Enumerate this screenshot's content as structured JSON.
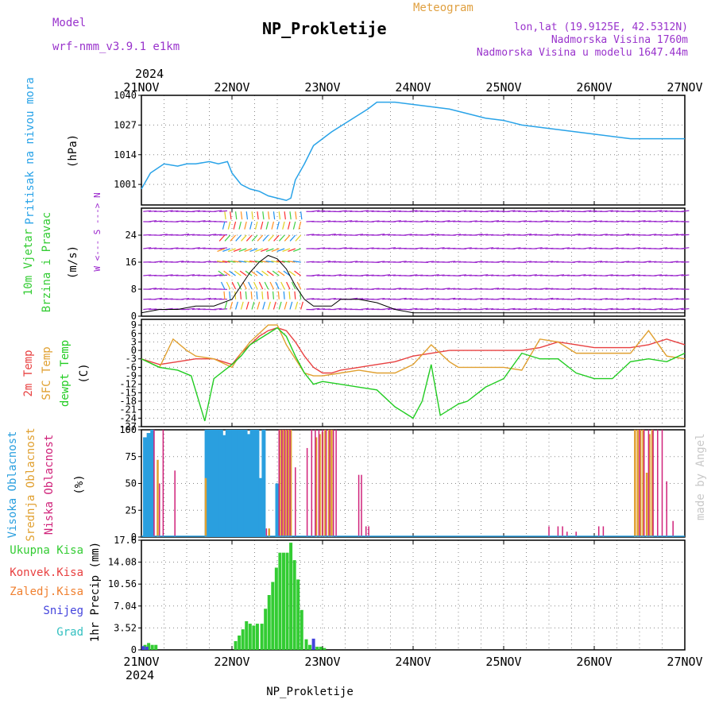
{
  "header": {
    "model_label": "Model",
    "model_name": "wrf-nmm_v3.9.1  e1km",
    "title": "NP_Prokletije",
    "meteogram_label": "Meteogram",
    "lonlat": "lon,lat (19.9125E, 42.5312N)",
    "elevation": "Nadmorska Visina 1760m",
    "model_elevation": "Nadmorska Visina u modelu 1647.44m",
    "top_year": "2024",
    "bottom_year": "2024",
    "footer": "NP_Prokletije",
    "credit": "made by Angel"
  },
  "colors": {
    "pressure": "#29a3e8",
    "wind_speed": "#000000",
    "temp2m": "#e84040",
    "sfc_temp": "#e0a030",
    "dewpoint": "#22cc22",
    "high_cloud": "#2a9fdf",
    "mid_cloud": "#e0a030",
    "low_cloud": "#d0227a",
    "total_precip": "#33cc33",
    "convective": "#e84040",
    "freezing": "#f08030",
    "snow": "#4444dd",
    "hail": "#33c0c0",
    "vane_purple": "#9922cc"
  },
  "chart_data": [
    {
      "type": "line",
      "panel": "pressure",
      "ylabel": [
        "Pritisak na nivou mora",
        "(hPa)"
      ],
      "x_ticks": [
        "21NOV",
        "22NOV",
        "23NOV",
        "24NOV",
        "25NOV",
        "26NOV",
        "27NOV"
      ],
      "ylim": [
        992,
        1040
      ],
      "yticks": [
        1001,
        1014,
        1027,
        1040
      ],
      "grid": true,
      "series": [
        {
          "x": [
            0,
            0.1,
            0.25,
            0.4,
            0.5,
            0.6,
            0.75,
            0.85,
            0.95,
            1.0,
            1.1,
            1.2,
            1.3,
            1.4,
            1.5,
            1.6,
            1.65,
            1.7,
            1.8,
            1.9,
            2.0,
            2.1,
            2.3,
            2.5,
            2.6,
            2.8,
            3.0,
            3.2,
            3.4,
            3.6,
            3.8,
            4.0,
            4.2,
            4.4,
            4.6,
            4.8,
            5.0,
            5.2,
            5.4,
            5.6,
            5.8,
            6.0
          ],
          "y": [
            999,
            1006,
            1010,
            1009,
            1010,
            1010,
            1011,
            1010,
            1011,
            1006,
            1001,
            999,
            998,
            996,
            995,
            994,
            995,
            1003,
            1010,
            1018,
            1021,
            1024,
            1029,
            1034,
            1037,
            1037,
            1036,
            1035,
            1034,
            1032,
            1030,
            1029,
            1027,
            1026,
            1025,
            1024,
            1023,
            1022,
            1021,
            1021,
            1021,
            1021
          ]
        }
      ]
    },
    {
      "type": "line",
      "panel": "wind",
      "ylabel": [
        "10m Vjetar",
        "Brzina i Pravac",
        "(m/s)"
      ],
      "direction_legend": "W <--- S ---> N",
      "ylim": [
        0,
        32
      ],
      "yticks": [
        0,
        8,
        16,
        24
      ],
      "grid": true,
      "series": [
        {
          "name": "wind_speed",
          "x": [
            0,
            0.2,
            0.4,
            0.6,
            0.8,
            1.0,
            1.1,
            1.2,
            1.3,
            1.4,
            1.5,
            1.6,
            1.7,
            1.8,
            1.9,
            2.0,
            2.1,
            2.2,
            2.4,
            2.6,
            2.8,
            3.0,
            3.2,
            3.5,
            4.0,
            4.5,
            5.0,
            5.5,
            6.0
          ],
          "y": [
            1,
            2,
            2,
            3,
            3,
            5,
            9,
            13,
            16,
            18,
            17,
            14,
            9,
            5,
            3,
            3,
            3,
            5,
            5,
            4,
            2,
            1,
            1,
            1,
            1,
            1,
            1,
            1,
            1
          ]
        }
      ]
    },
    {
      "type": "line",
      "panel": "temperature",
      "ylabel": [
        "2m Temp",
        "SFC Temp",
        "dewpt Temp",
        "(C)"
      ],
      "ylim": [
        -27,
        11
      ],
      "yticks": [
        -27,
        -24,
        -21,
        -18,
        -15,
        -12,
        -9,
        -6,
        -3,
        0,
        3,
        6,
        9
      ],
      "grid": true,
      "series": [
        {
          "name": "2m Temp",
          "x": [
            0,
            0.2,
            0.4,
            0.6,
            0.8,
            1.0,
            1.1,
            1.2,
            1.3,
            1.4,
            1.5,
            1.6,
            1.7,
            1.8,
            1.9,
            2.0,
            2.1,
            2.2,
            2.4,
            2.6,
            2.8,
            3.0,
            3.2,
            3.4,
            3.6,
            3.8,
            4.0,
            4.2,
            4.4,
            4.6,
            4.8,
            5.0,
            5.2,
            5.4,
            5.6,
            5.8,
            6.0
          ],
          "y": [
            -3,
            -5,
            -4,
            -3,
            -3,
            -5,
            -1,
            2,
            5,
            7,
            8,
            7,
            3,
            -2,
            -6,
            -8,
            -8,
            -7,
            -6,
            -5,
            -4,
            -2,
            -1,
            0,
            0,
            0,
            0,
            0,
            1,
            3,
            2,
            1,
            1,
            1,
            2,
            4,
            2
          ]
        },
        {
          "name": "SFC Temp",
          "x": [
            0,
            0.2,
            0.35,
            0.5,
            0.6,
            0.8,
            1.0,
            1.1,
            1.2,
            1.3,
            1.4,
            1.5,
            1.6,
            1.7,
            1.8,
            1.9,
            2.0,
            2.2,
            2.4,
            2.6,
            2.8,
            3.0,
            3.2,
            3.4,
            3.5,
            3.6,
            3.8,
            4.0,
            4.2,
            4.4,
            4.6,
            4.8,
            5.0,
            5.2,
            5.4,
            5.6,
            5.8,
            6.0
          ],
          "y": [
            -3,
            -6,
            4,
            0,
            -2,
            -3,
            -6,
            -1,
            3,
            6,
            9,
            9,
            2,
            -3,
            -8,
            -9,
            -9,
            -8,
            -7,
            -8,
            -8,
            -5,
            2,
            -4,
            -6,
            -6,
            -6,
            -6,
            -7,
            4,
            3,
            -1,
            -1,
            -1,
            -1,
            7,
            -2,
            -3
          ]
        },
        {
          "name": "dewpt Temp",
          "x": [
            0,
            0.2,
            0.4,
            0.55,
            0.7,
            0.8,
            1.0,
            1.1,
            1.2,
            1.3,
            1.4,
            1.5,
            1.6,
            1.7,
            1.8,
            1.9,
            2.0,
            2.2,
            2.4,
            2.6,
            2.8,
            3.0,
            3.1,
            3.2,
            3.3,
            3.5,
            3.6,
            3.8,
            4.0,
            4.2,
            4.4,
            4.6,
            4.8,
            5.0,
            5.2,
            5.4,
            5.6,
            5.8,
            6.0
          ],
          "y": [
            -3,
            -6,
            -7,
            -9,
            -25,
            -10,
            -5,
            -2,
            2,
            4,
            6,
            8,
            5,
            -2,
            -8,
            -12,
            -11,
            -12,
            -13,
            -14,
            -20,
            -24,
            -18,
            -5,
            -23,
            -19,
            -18,
            -13,
            -10,
            -1,
            -3,
            -3,
            -8,
            -10,
            -10,
            -4,
            -3,
            -4,
            -1
          ]
        }
      ]
    },
    {
      "type": "bar",
      "panel": "cloud",
      "ylabel": [
        "Visoka Oblacnost",
        "Srednja Oblacnost",
        "Niska Oblacnost",
        "(%)"
      ],
      "ylim": [
        0,
        100
      ],
      "yticks": [
        0,
        25,
        50,
        75,
        100
      ],
      "grid": true,
      "series": [
        {
          "name": "Visoka Oblacnost",
          "x": [
            0.04,
            0.08,
            0.12,
            0.72,
            0.75,
            0.78,
            0.81,
            0.85,
            0.88,
            0.91,
            0.95,
            0.98,
            1.02,
            1.05,
            1.08,
            1.12,
            1.15,
            1.18,
            1.22,
            1.25,
            1.28,
            1.32,
            1.35,
            1.5
          ],
          "y": [
            93,
            97,
            100,
            100,
            100,
            100,
            100,
            100,
            100,
            95,
            100,
            100,
            100,
            100,
            100,
            100,
            100,
            96,
            100,
            100,
            100,
            55,
            100,
            50
          ]
        },
        {
          "name": "Srednja Oblacnost",
          "x": [
            0.18,
            0.71,
            1.41,
            1.53,
            1.56,
            1.59,
            1.62,
            1.65,
            1.93,
            1.97,
            2.0,
            2.03,
            2.07,
            2.1,
            5.45,
            5.48,
            5.51,
            5.54,
            5.58,
            5.61,
            5.64
          ],
          "y": [
            72,
            55,
            8,
            100,
            100,
            100,
            100,
            100,
            93,
            96,
            98,
            100,
            100,
            100,
            100,
            100,
            100,
            100,
            60,
            96,
            100
          ]
        },
        {
          "name": "Niska Oblacnost",
          "x": [
            0.14,
            0.2,
            0.24,
            0.37,
            1.38,
            1.52,
            1.55,
            1.58,
            1.61,
            1.64,
            1.7,
            1.83,
            1.88,
            1.92,
            1.96,
            2.0,
            2.04,
            2.08,
            2.12,
            2.15,
            2.4,
            2.43,
            2.48,
            2.51,
            4.5,
            4.6,
            4.65,
            4.7,
            4.8,
            5.05,
            5.1,
            5.5,
            5.55,
            5.6,
            5.65,
            5.7,
            5.75,
            5.8,
            5.87
          ],
          "y": [
            100,
            50,
            100,
            62,
            8,
            100,
            100,
            100,
            100,
            100,
            65,
            83,
            100,
            100,
            100,
            100,
            100,
            100,
            100,
            100,
            58,
            58,
            10,
            10,
            10,
            10,
            10,
            5,
            5,
            10,
            10,
            100,
            100,
            100,
            100,
            100,
            100,
            52,
            15
          ]
        }
      ]
    },
    {
      "type": "bar",
      "panel": "precip",
      "ylabel": [
        "1hr Precip (mm)"
      ],
      "legend": [
        "Ukupna Kisa",
        "Konvek.Kisa",
        "Zaledj.Kisa",
        "Snijeg",
        "Grad"
      ],
      "ylim": [
        0,
        17.6
      ],
      "yticks": [
        0,
        3.52,
        7.04,
        10.56,
        14.08,
        17.6
      ],
      "ytick_labels": [
        "0",
        "3.52",
        "7.04",
        "10.56",
        "14.08",
        "17.6"
      ],
      "grid": true,
      "x_ticks": [
        "21NOV",
        "22NOV",
        "23NOV",
        "24NOV",
        "25NOV",
        "26NOV",
        "27NOV"
      ],
      "series": [
        {
          "name": "Ukupna Kisa",
          "x": [
            0.04,
            0.08,
            0.12,
            0.16,
            1.04,
            1.08,
            1.12,
            1.16,
            1.2,
            1.24,
            1.28,
            1.33,
            1.37,
            1.41,
            1.45,
            1.49,
            1.53,
            1.57,
            1.61,
            1.65,
            1.69,
            1.73,
            1.77,
            1.82,
            1.86,
            1.9,
            1.94,
            1.98,
            2.02
          ],
          "y": [
            0.8,
            1.1,
            0.8,
            0.8,
            1.4,
            2.3,
            3.3,
            4.6,
            4.2,
            3.9,
            4.2,
            4.2,
            6.6,
            8.8,
            10.9,
            13.2,
            15.6,
            15.6,
            15.6,
            17.2,
            14.4,
            11.3,
            6.4,
            1.7,
            0.8,
            0.7,
            0.5,
            0.5,
            0.3
          ]
        },
        {
          "name": "Snijeg",
          "x": [
            0.02,
            0.06,
            1.9
          ],
          "y": [
            0.6,
            0.5,
            1.8
          ]
        }
      ]
    }
  ]
}
